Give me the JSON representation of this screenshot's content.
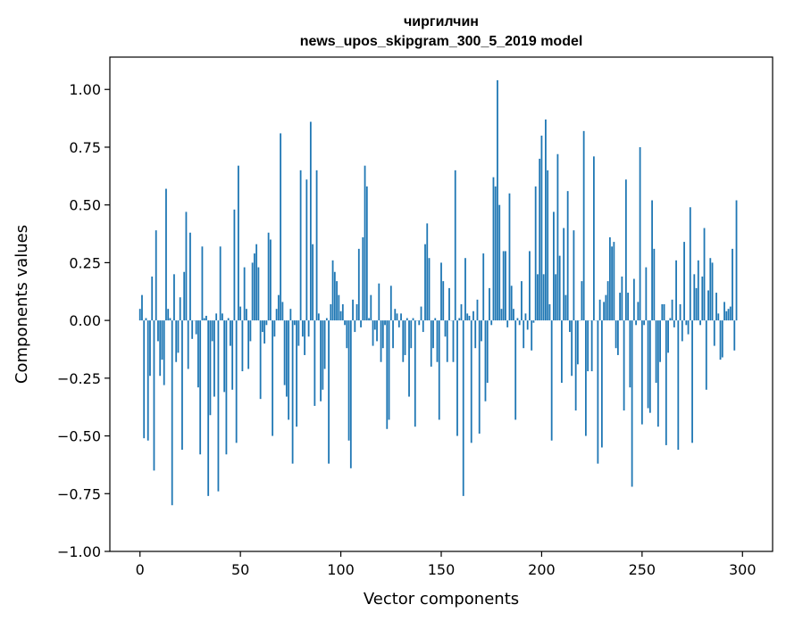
{
  "chart_data": {
    "type": "bar",
    "title_line1": "чиргилчин",
    "title_line2": "news_upos_skipgram_300_5_2019 model",
    "xlabel": "Vector components",
    "ylabel": "Components values",
    "xlim": [
      -15,
      315
    ],
    "ylim": [
      -1.0,
      1.14
    ],
    "xticks": [
      0,
      50,
      100,
      150,
      200,
      250,
      300
    ],
    "xtick_labels": [
      "0",
      "50",
      "100",
      "150",
      "200",
      "250",
      "300"
    ],
    "yticks": [
      -1.0,
      -0.75,
      -0.5,
      -0.25,
      0.0,
      0.25,
      0.5,
      0.75,
      1.0
    ],
    "ytick_labels": [
      "−1.00",
      "−0.75",
      "−0.50",
      "−0.25",
      "0.00",
      "0.25",
      "0.50",
      "0.75",
      "1.00"
    ],
    "bar_color": "#1f77b4",
    "grid": false,
    "x": "0..299 (component index)",
    "values": [
      0.05,
      0.11,
      -0.51,
      0.01,
      -0.52,
      -0.24,
      0.19,
      -0.65,
      0.39,
      -0.09,
      -0.24,
      -0.17,
      -0.28,
      0.57,
      0.05,
      0.01,
      -0.8,
      0.2,
      -0.18,
      -0.14,
      0.1,
      -0.56,
      0.21,
      0.47,
      -0.21,
      0.38,
      -0.08,
      0.0,
      -0.06,
      -0.29,
      -0.58,
      0.32,
      0.01,
      0.02,
      -0.76,
      -0.41,
      -0.09,
      -0.33,
      0.03,
      -0.74,
      0.32,
      0.03,
      -0.31,
      -0.58,
      0.01,
      -0.11,
      -0.3,
      0.48,
      -0.53,
      0.67,
      0.06,
      -0.22,
      0.23,
      0.05,
      -0.21,
      -0.09,
      0.25,
      0.29,
      0.33,
      0.23,
      -0.34,
      -0.05,
      -0.1,
      -0.02,
      0.38,
      0.35,
      -0.5,
      -0.07,
      0.05,
      0.11,
      0.81,
      0.08,
      -0.28,
      -0.33,
      -0.43,
      0.05,
      -0.62,
      -0.02,
      -0.46,
      -0.11,
      0.65,
      -0.07,
      -0.15,
      0.61,
      -0.07,
      0.86,
      0.33,
      -0.37,
      0.65,
      0.03,
      -0.35,
      -0.3,
      -0.21,
      0.01,
      -0.62,
      0.07,
      0.26,
      0.21,
      0.17,
      0.11,
      0.04,
      0.07,
      -0.02,
      -0.12,
      -0.52,
      -0.64,
      0.09,
      -0.05,
      0.07,
      0.31,
      -0.03,
      0.36,
      0.67,
      0.58,
      0.01,
      0.11,
      -0.11,
      -0.04,
      -0.09,
      0.16,
      -0.18,
      -0.12,
      -0.02,
      -0.47,
      -0.43,
      0.15,
      -0.12,
      0.05,
      0.03,
      -0.03,
      0.03,
      -0.18,
      -0.15,
      0.01,
      -0.33,
      -0.12,
      0.01,
      -0.46,
      0.0,
      -0.02,
      0.06,
      -0.05,
      0.33,
      0.42,
      0.27,
      -0.2,
      -0.12,
      0.01,
      -0.18,
      -0.43,
      0.25,
      0.17,
      -0.07,
      -0.18,
      0.14,
      0.0,
      -0.18,
      0.65,
      -0.5,
      0.01,
      0.07,
      -0.76,
      0.27,
      0.03,
      0.02,
      -0.53,
      0.04,
      -0.12,
      0.09,
      -0.49,
      -0.09,
      0.29,
      -0.35,
      -0.27,
      0.14,
      -0.02,
      0.62,
      0.58,
      1.04,
      0.5,
      0.05,
      0.3,
      0.3,
      -0.03,
      0.55,
      0.15,
      0.05,
      -0.43,
      0.01,
      -0.02,
      0.17,
      -0.12,
      0.03,
      -0.04,
      0.3,
      -0.13,
      -0.01,
      0.58,
      0.2,
      0.7,
      0.8,
      0.2,
      0.87,
      0.65,
      0.07,
      -0.52,
      0.47,
      0.2,
      0.72,
      0.28,
      -0.27,
      0.4,
      0.11,
      0.56,
      -0.05,
      -0.24,
      0.39,
      -0.39,
      -0.19,
      0.0,
      0.17,
      0.82,
      -0.5,
      -0.22,
      0.0,
      -0.22,
      0.71,
      0.0,
      -0.62,
      0.09,
      -0.55,
      0.08,
      0.11,
      0.17,
      0.36,
      0.32,
      0.34,
      -0.12,
      -0.15,
      0.12,
      0.19,
      -0.39,
      0.61,
      0.12,
      -0.29,
      -0.72,
      0.18,
      -0.02,
      0.08,
      0.75,
      -0.45,
      -0.02,
      0.23,
      -0.38,
      -0.4,
      0.52,
      0.31,
      -0.27,
      -0.46,
      -0.18,
      0.07,
      0.07,
      -0.54,
      -0.14,
      0.01,
      0.09,
      -0.03,
      0.26,
      -0.56,
      0.07,
      -0.09,
      0.34,
      -0.02,
      -0.06,
      0.49,
      -0.53,
      0.2,
      0.14,
      0.26,
      -0.02,
      0.19,
      0.4,
      -0.3,
      0.13,
      0.27,
      0.25,
      -0.11,
      0.12,
      0.03,
      -0.17,
      -0.16,
      0.08,
      0.04,
      0.05,
      0.06,
      0.31,
      -0.13,
      0.52
    ]
  }
}
